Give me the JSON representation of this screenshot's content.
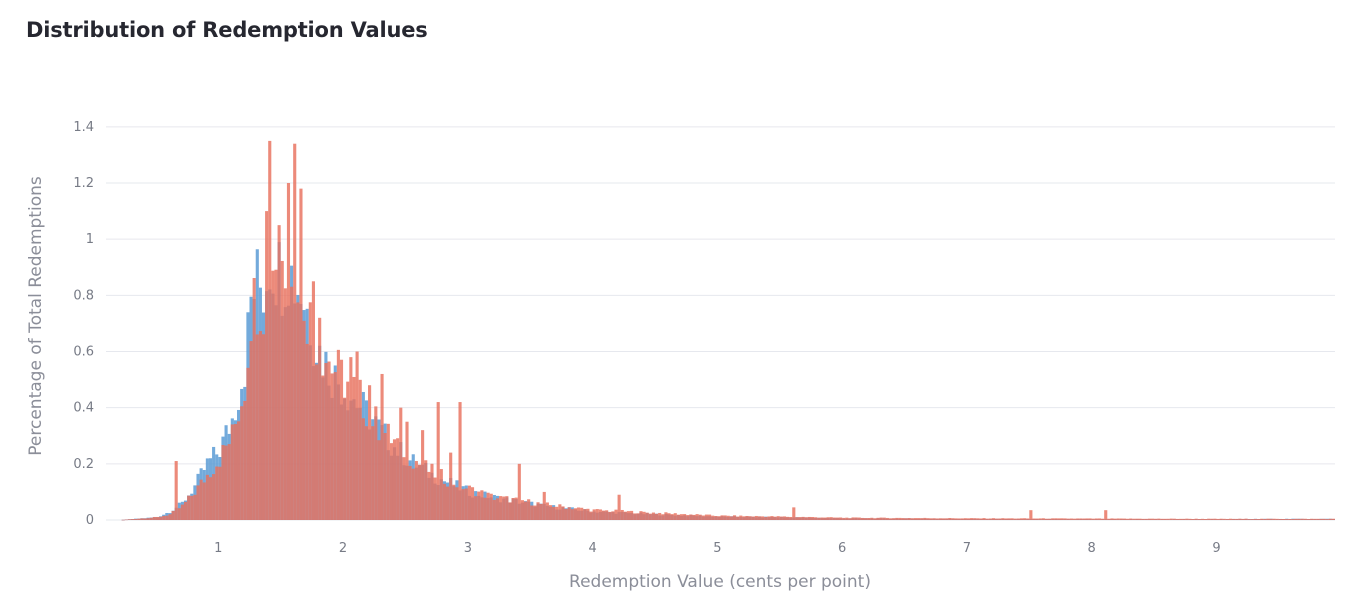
{
  "chart_data": {
    "type": "bar",
    "title": "Distribution of Redemption Values",
    "xlabel": "Redemption Value (cents per point)",
    "ylabel": "Percentage of Total Redemptions",
    "xlim": [
      0.1,
      9.95
    ],
    "ylim": [
      0,
      1.46
    ],
    "x_ticks": [
      1,
      2,
      3,
      4,
      5,
      6,
      7,
      8,
      9
    ],
    "y_ticks": [
      0,
      0.2,
      0.4,
      0.6,
      0.8,
      1,
      1.2,
      1.4
    ],
    "y_tick_labels": [
      "0",
      "0.2",
      "0.4",
      "0.6",
      "0.8",
      "1",
      "1.2",
      "1.4"
    ],
    "grid": true,
    "bin_width": 0.025,
    "series": [
      {
        "color": "#5b9bd5",
        "x": [
          0.5,
          0.6,
          0.7,
          0.8,
          0.9,
          1.0,
          1.1,
          1.2,
          1.25,
          1.3,
          1.35,
          1.4,
          1.45,
          1.5,
          1.55,
          1.6,
          1.65,
          1.7,
          1.75,
          1.8,
          1.9,
          2.0,
          2.1,
          2.2,
          2.3,
          2.4,
          2.5,
          2.6,
          2.7,
          2.8,
          2.9,
          3.0,
          3.2,
          3.4,
          3.6,
          3.8,
          4.0,
          4.5,
          5.0,
          5.5,
          6.0,
          7.0,
          8.0,
          9.0,
          9.5
        ],
        "values": [
          0.01,
          0.03,
          0.06,
          0.12,
          0.2,
          0.25,
          0.36,
          0.55,
          0.78,
          0.85,
          0.82,
          0.93,
          0.9,
          0.88,
          0.9,
          0.85,
          0.82,
          0.75,
          0.66,
          0.6,
          0.52,
          0.47,
          0.42,
          0.37,
          0.31,
          0.26,
          0.22,
          0.19,
          0.16,
          0.14,
          0.12,
          0.1,
          0.08,
          0.065,
          0.05,
          0.04,
          0.03,
          0.02,
          0.012,
          0.01,
          0.006,
          0.004,
          0.003,
          0.003,
          0.004
        ]
      },
      {
        "color": "#e8705d",
        "x": [
          0.5,
          0.6,
          0.7,
          0.8,
          0.9,
          1.0,
          1.1,
          1.2,
          1.25,
          1.3,
          1.35,
          1.4,
          1.45,
          1.5,
          1.55,
          1.6,
          1.65,
          1.7,
          1.75,
          1.8,
          1.9,
          2.0,
          2.1,
          2.2,
          2.3,
          2.4,
          2.5,
          2.6,
          2.7,
          2.8,
          2.9,
          3.0,
          3.2,
          3.4,
          3.6,
          3.8,
          4.0,
          4.5,
          5.0,
          5.5,
          6.0,
          7.0,
          8.0,
          9.0,
          9.5
        ],
        "values": [
          0.01,
          0.02,
          0.05,
          0.1,
          0.16,
          0.22,
          0.3,
          0.48,
          0.75,
          0.8,
          0.78,
          0.9,
          0.95,
          0.92,
          0.95,
          0.92,
          0.85,
          0.75,
          0.68,
          0.62,
          0.55,
          0.5,
          0.45,
          0.38,
          0.32,
          0.28,
          0.24,
          0.2,
          0.17,
          0.15,
          0.13,
          0.11,
          0.08,
          0.07,
          0.055,
          0.045,
          0.035,
          0.025,
          0.015,
          0.012,
          0.008,
          0.006,
          0.005,
          0.004,
          0.004
        ],
        "spikes": [
          [
            0.65,
            0.21
          ],
          [
            1.38,
            1.1
          ],
          [
            1.4,
            1.35
          ],
          [
            1.48,
            1.05
          ],
          [
            1.55,
            1.2
          ],
          [
            1.6,
            1.34
          ],
          [
            1.65,
            1.18
          ],
          [
            1.75,
            0.85
          ],
          [
            1.8,
            0.72
          ],
          [
            2.05,
            0.58
          ],
          [
            2.1,
            0.6
          ],
          [
            2.2,
            0.48
          ],
          [
            2.3,
            0.52
          ],
          [
            2.45,
            0.4
          ],
          [
            2.5,
            0.35
          ],
          [
            2.62,
            0.32
          ],
          [
            2.75,
            0.42
          ],
          [
            2.85,
            0.24
          ],
          [
            2.93,
            0.42
          ],
          [
            3.4,
            0.2
          ],
          [
            3.6,
            0.1
          ],
          [
            4.2,
            0.09
          ],
          [
            5.6,
            0.045
          ],
          [
            7.5,
            0.035
          ],
          [
            8.1,
            0.035
          ]
        ]
      }
    ]
  }
}
